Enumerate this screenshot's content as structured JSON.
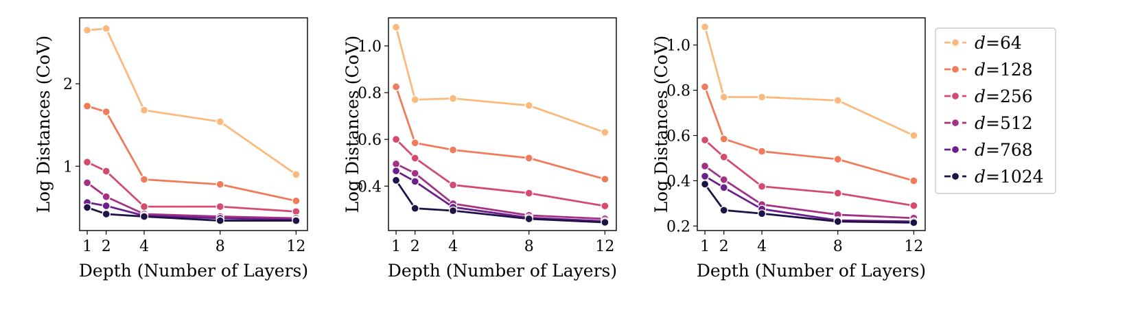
{
  "chart_data": [
    {
      "type": "line",
      "xlabel": "Depth (Number of Layers)",
      "ylabel": "Log Distances (CoV)",
      "x": [
        1,
        2,
        4,
        8,
        12
      ],
      "x_ticks": [
        "1",
        "2",
        "4",
        "8",
        "12"
      ],
      "xlim": [
        0.6,
        12.6
      ],
      "ylim": [
        0.22,
        2.8
      ],
      "y_ticks": [
        1,
        2
      ],
      "y_tick_labels": [
        "1",
        "2"
      ],
      "series": [
        {
          "name": "d=64",
          "color": "#fcb97d",
          "values": [
            2.65,
            2.67,
            1.68,
            1.54,
            0.9
          ]
        },
        {
          "name": "d=128",
          "color": "#f07b5a",
          "values": [
            1.73,
            1.66,
            0.84,
            0.78,
            0.58
          ]
        },
        {
          "name": "d=256",
          "color": "#d44b6f",
          "values": [
            1.05,
            0.94,
            0.51,
            0.51,
            0.45
          ]
        },
        {
          "name": "d=512",
          "color": "#a33184",
          "values": [
            0.8,
            0.63,
            0.42,
            0.39,
            0.37
          ]
        },
        {
          "name": "d=768",
          "color": "#6a1f8a",
          "values": [
            0.56,
            0.52,
            0.4,
            0.37,
            0.35
          ]
        },
        {
          "name": "d=1024",
          "color": "#1f1246",
          "values": [
            0.5,
            0.42,
            0.39,
            0.34,
            0.34
          ]
        }
      ]
    },
    {
      "type": "line",
      "xlabel": "Depth (Number of Layers)",
      "ylabel": "Log Distances (CoV)",
      "x": [
        1,
        2,
        4,
        8,
        12
      ],
      "x_ticks": [
        "1",
        "2",
        "4",
        "8",
        "12"
      ],
      "xlim": [
        0.6,
        12.6
      ],
      "ylim": [
        0.21,
        1.12
      ],
      "y_ticks": [
        0.4,
        0.6,
        0.8,
        1.0
      ],
      "y_tick_labels": [
        "0.4",
        "0.6",
        "0.8",
        "1.0"
      ],
      "series": [
        {
          "name": "d=64",
          "color": "#fcb97d",
          "values": [
            1.08,
            0.77,
            0.775,
            0.745,
            0.63
          ]
        },
        {
          "name": "d=128",
          "color": "#f07b5a",
          "values": [
            0.825,
            0.585,
            0.555,
            0.52,
            0.43
          ]
        },
        {
          "name": "d=256",
          "color": "#d44b6f",
          "values": [
            0.6,
            0.52,
            0.405,
            0.37,
            0.315
          ]
        },
        {
          "name": "d=512",
          "color": "#a33184",
          "values": [
            0.495,
            0.455,
            0.325,
            0.275,
            0.26
          ]
        },
        {
          "name": "d=768",
          "color": "#6a1f8a",
          "values": [
            0.465,
            0.42,
            0.31,
            0.265,
            0.25
          ]
        },
        {
          "name": "d=1024",
          "color": "#1f1246",
          "values": [
            0.425,
            0.305,
            0.295,
            0.26,
            0.245
          ]
        }
      ]
    },
    {
      "type": "line",
      "xlabel": "Depth (Number of Layers)",
      "ylabel": "Log Distances (CoV)",
      "x": [
        1,
        2,
        4,
        8,
        12
      ],
      "x_ticks": [
        "1",
        "2",
        "4",
        "8",
        "12"
      ],
      "xlim": [
        0.6,
        12.6
      ],
      "ylim": [
        0.18,
        1.12
      ],
      "y_ticks": [
        0.2,
        0.4,
        0.6,
        0.8,
        1.0
      ],
      "y_tick_labels": [
        "0.2",
        "0.4",
        "0.6",
        "0.8",
        "1.0"
      ],
      "series": [
        {
          "name": "d=64",
          "color": "#fcb97d",
          "values": [
            1.08,
            0.77,
            0.77,
            0.755,
            0.6
          ]
        },
        {
          "name": "d=128",
          "color": "#f07b5a",
          "values": [
            0.815,
            0.585,
            0.53,
            0.495,
            0.4
          ]
        },
        {
          "name": "d=256",
          "color": "#d44b6f",
          "values": [
            0.58,
            0.505,
            0.375,
            0.345,
            0.29
          ]
        },
        {
          "name": "d=512",
          "color": "#a33184",
          "values": [
            0.465,
            0.405,
            0.295,
            0.25,
            0.235
          ]
        },
        {
          "name": "d=768",
          "color": "#6a1f8a",
          "values": [
            0.42,
            0.37,
            0.275,
            0.225,
            0.22
          ]
        },
        {
          "name": "d=1024",
          "color": "#1f1246",
          "values": [
            0.385,
            0.27,
            0.255,
            0.22,
            0.215
          ]
        }
      ]
    }
  ],
  "legend": {
    "items": [
      {
        "prefix": "d",
        "suffix": "=64",
        "color": "#fcb97d"
      },
      {
        "prefix": "d",
        "suffix": "=128",
        "color": "#f07b5a"
      },
      {
        "prefix": "d",
        "suffix": "=256",
        "color": "#d44b6f"
      },
      {
        "prefix": "d",
        "suffix": "=512",
        "color": "#a33184"
      },
      {
        "prefix": "d",
        "suffix": "=768",
        "color": "#6a1f8a"
      },
      {
        "prefix": "d",
        "suffix": "=1024",
        "color": "#1f1246"
      }
    ]
  }
}
